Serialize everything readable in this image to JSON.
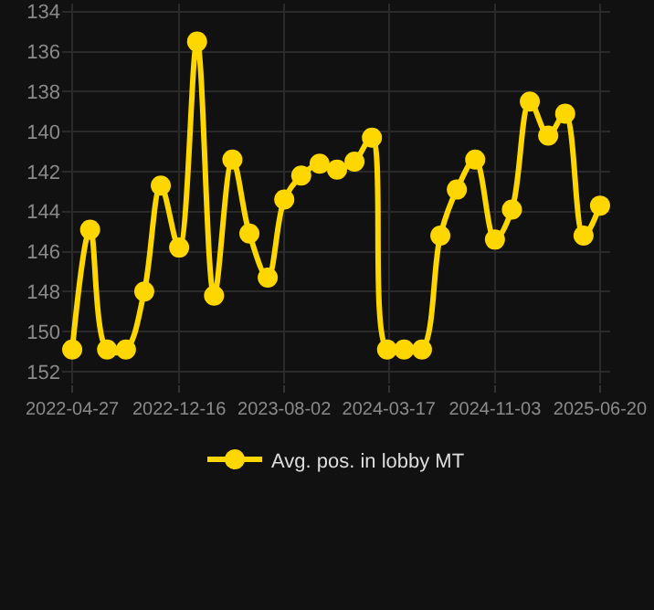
{
  "chart_data": {
    "type": "line",
    "x": [
      "2022-04-27",
      "2022-06-05",
      "2022-07-12",
      "2022-08-22",
      "2022-10-01",
      "2022-11-06",
      "2022-12-16",
      "2023-01-24",
      "2023-03-02",
      "2023-04-11",
      "2023-05-18",
      "2023-06-27",
      "2023-08-02",
      "2023-09-08",
      "2023-10-18",
      "2023-11-25",
      "2024-01-02",
      "2024-02-09",
      "2024-03-13",
      "2024-04-19",
      "2024-05-28",
      "2024-07-07",
      "2024-08-12",
      "2024-09-21",
      "2024-11-03",
      "2024-12-10",
      "2025-01-18",
      "2025-02-27",
      "2025-04-05",
      "2025-05-15",
      "2025-06-20"
    ],
    "series": [
      {
        "name": "Avg. pos. in lobby MT",
        "color": "#ffd700",
        "values": [
          150.9,
          144.9,
          150.9,
          150.9,
          148.0,
          142.7,
          145.8,
          135.5,
          148.2,
          141.4,
          145.1,
          147.3,
          143.4,
          142.2,
          141.6,
          141.9,
          141.5,
          140.3,
          150.9,
          150.9,
          150.9,
          145.2,
          142.9,
          141.4,
          145.4,
          143.9,
          138.5,
          140.2,
          139.1,
          145.2,
          143.7
        ]
      }
    ],
    "xlim": [
      "2022-04-05",
      "2025-07-12"
    ],
    "xticks": [
      "2022-04-27",
      "2022-12-16",
      "2023-08-02",
      "2024-03-17",
      "2024-11-03",
      "2025-06-20"
    ],
    "ylim": [
      152.6,
      133.6
    ],
    "yticks": [
      134,
      136,
      138,
      140,
      142,
      144,
      146,
      148,
      150,
      152
    ],
    "grid": true,
    "legend": "bottom",
    "marker": "circle",
    "line_style": "solid"
  }
}
